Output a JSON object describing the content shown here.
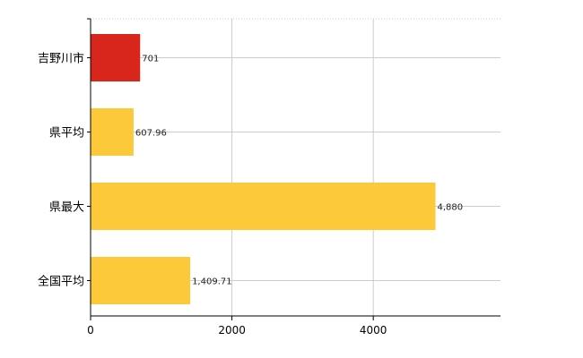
{
  "chart_data": {
    "type": "bar",
    "orientation": "horizontal",
    "categories": [
      "吉野川市",
      "県平均",
      "県最大",
      "全国平均"
    ],
    "values": [
      701,
      607.96,
      4880,
      1409.71
    ],
    "value_labels": [
      "701",
      "607.96",
      "4,880",
      "1,409.71"
    ],
    "colors": [
      "#d9261c",
      "#fcc93a",
      "#fcc93a",
      "#fcc93a"
    ],
    "xlim": [
      0,
      5800
    ],
    "xticks": [
      0,
      2000,
      4000
    ],
    "xtick_labels": [
      "0",
      "2000",
      "4000"
    ],
    "grid": true,
    "title": "",
    "xlabel": "",
    "ylabel": ""
  }
}
